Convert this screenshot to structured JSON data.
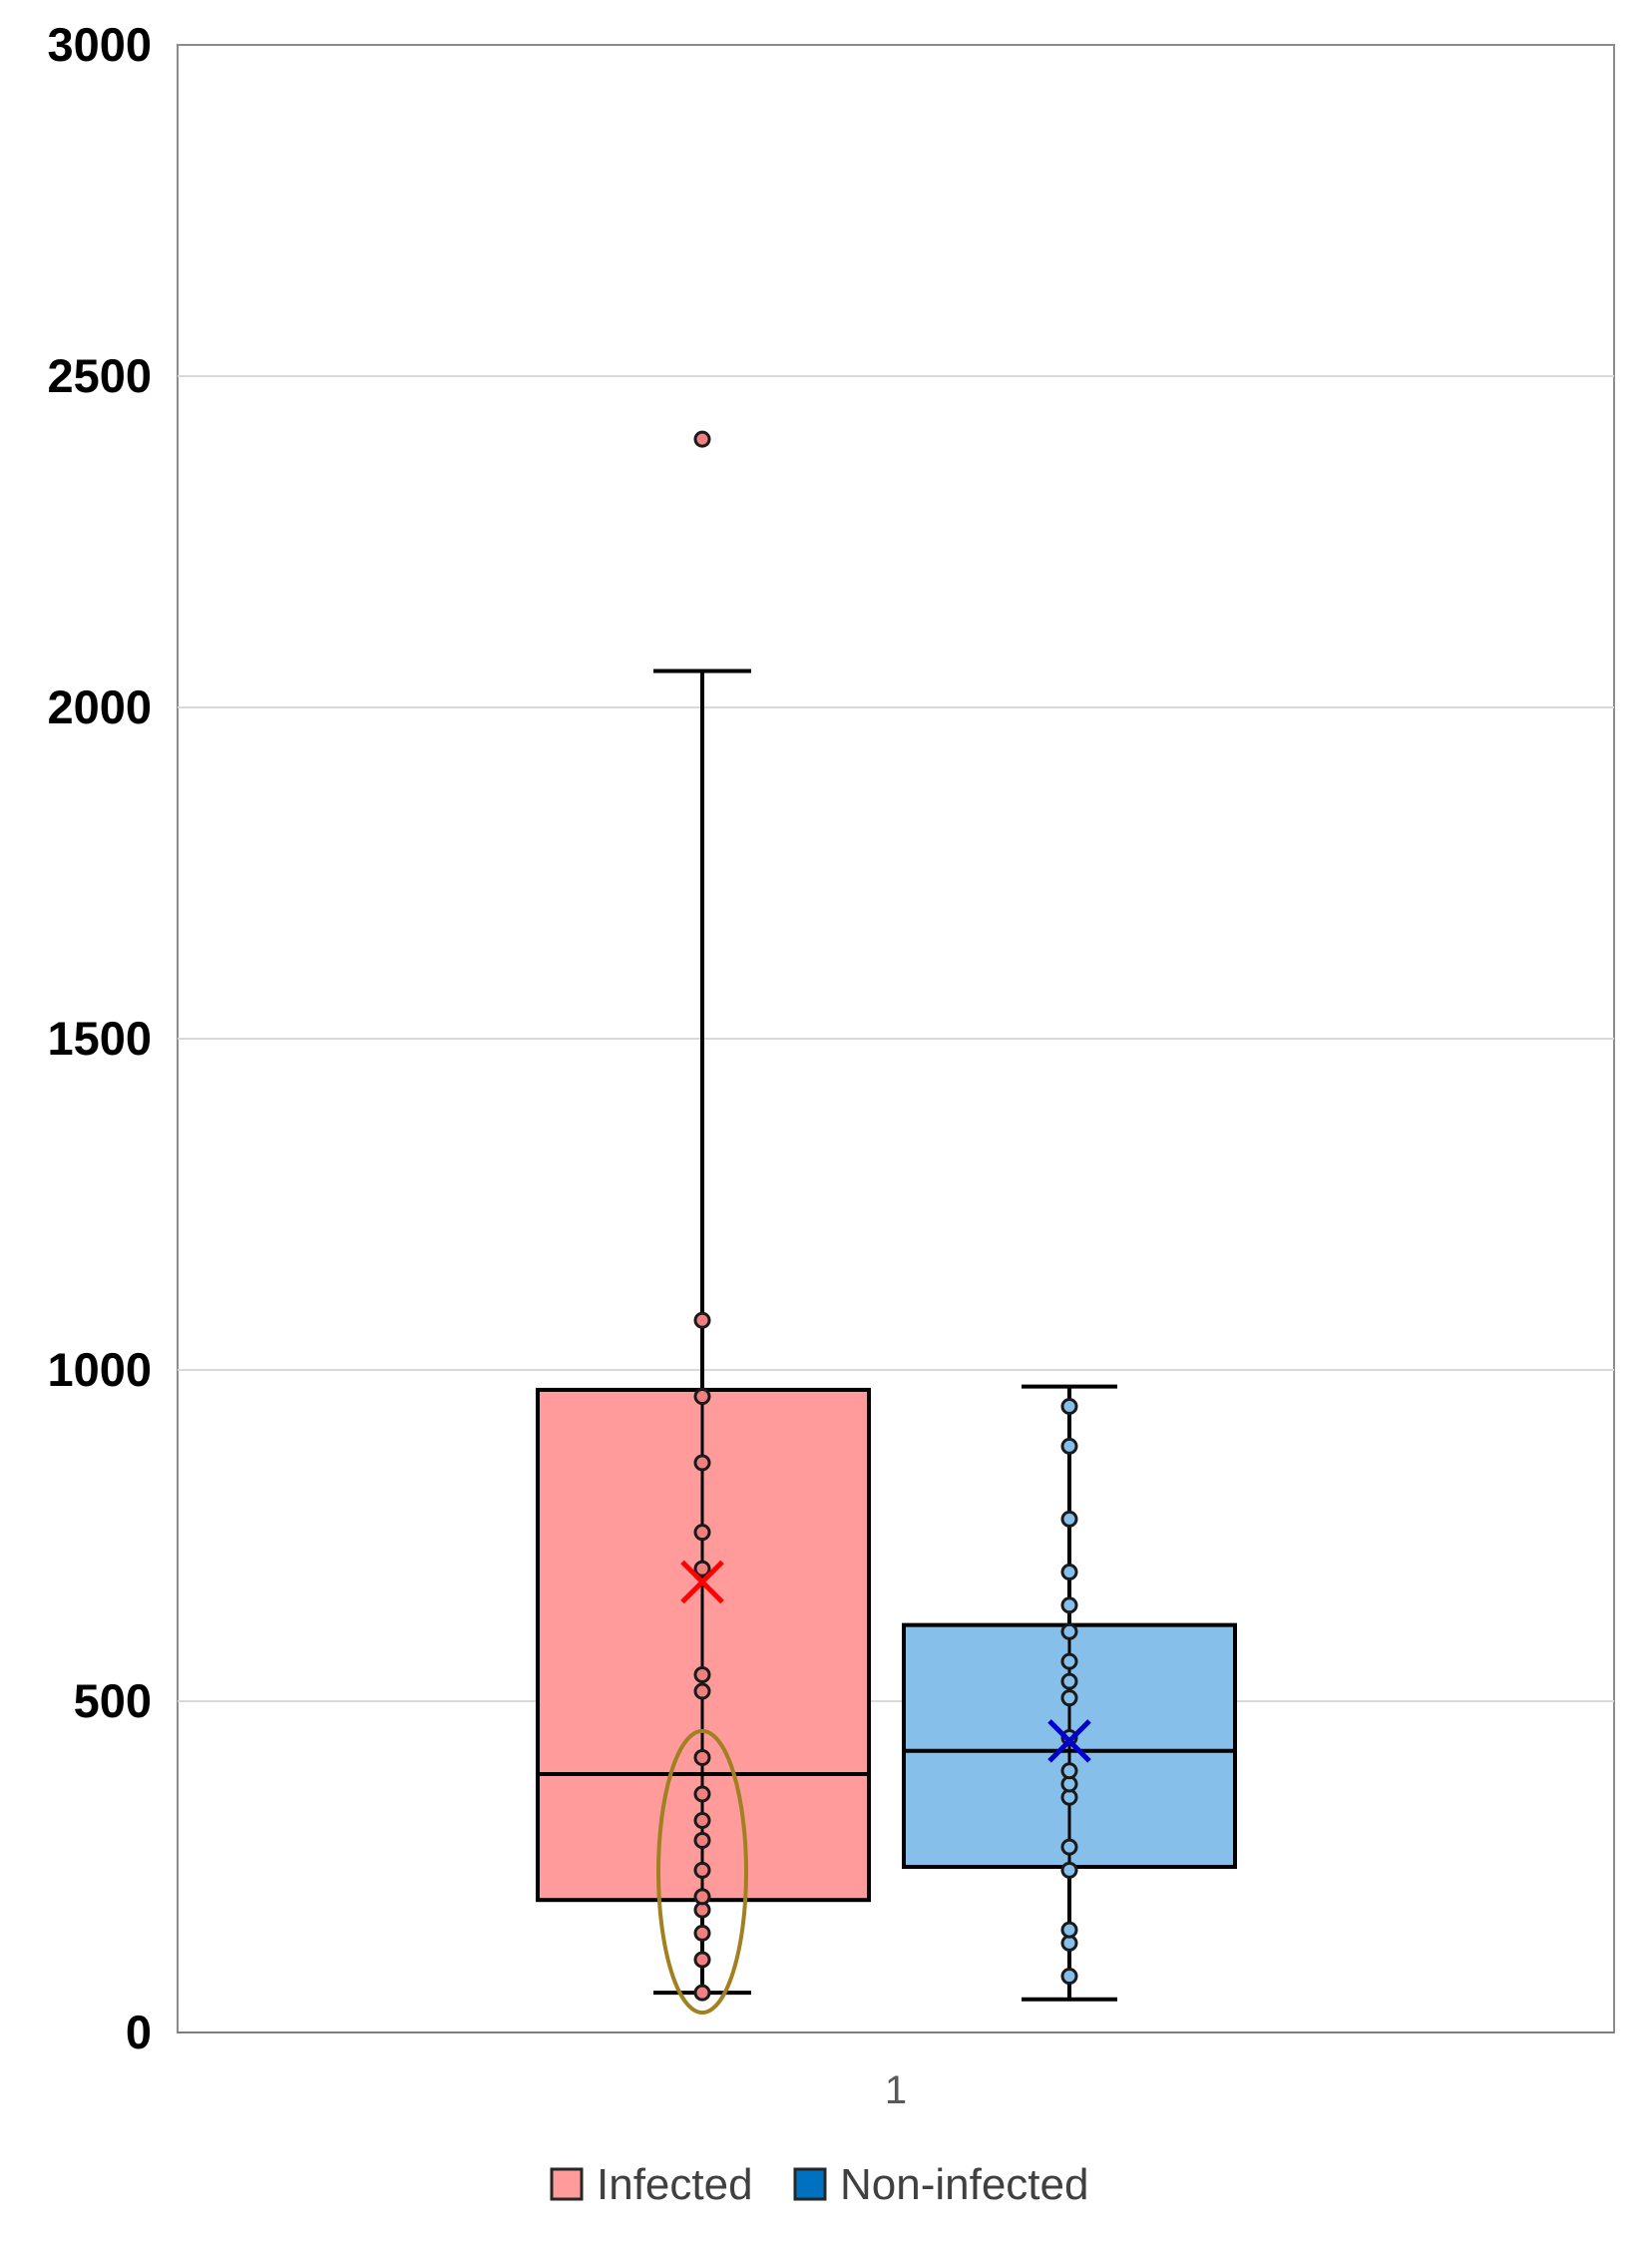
{
  "chart_data": {
    "type": "box",
    "title": "",
    "xlabel": "",
    "ylabel": "",
    "ylim": [
      0,
      3000
    ],
    "yticks": [
      "0",
      "500",
      "1000",
      "1500",
      "2000",
      "2500",
      "3000"
    ],
    "categories": [
      "1"
    ],
    "grid": true,
    "legend_position": "bottom",
    "series": [
      {
        "name": "Infected",
        "color": "#ff9b9b",
        "mean_marker_color": "#ff0000",
        "point_color": "#f08080",
        "whisker_low": 60,
        "q1": 200,
        "median": 390,
        "q3": 970,
        "whisker_high": 2055,
        "mean": 680,
        "outliers": [
          2405
        ],
        "points": [
          60,
          110,
          150,
          185,
          205,
          245,
          290,
          320,
          360,
          415,
          515,
          540,
          700,
          755,
          860,
          960,
          1075,
          2405
        ]
      },
      {
        "name": "Non-infected",
        "color": "#85bfea",
        "mean_marker_color": "#0000cc",
        "point_color": "#85bfea",
        "whisker_low": 50,
        "q1": 250,
        "median": 425,
        "q3": 615,
        "whisker_high": 975,
        "mean": 440,
        "outliers": [],
        "points": [
          85,
          135,
          155,
          245,
          280,
          355,
          375,
          395,
          445,
          505,
          530,
          560,
          605,
          645,
          695,
          775,
          885,
          945
        ]
      }
    ],
    "annotations": [
      {
        "type": "ellipse",
        "series": "Infected",
        "color": "#a08020",
        "y_range": [
          30,
          455
        ]
      }
    ]
  },
  "legend": {
    "items": [
      {
        "label": "Infected",
        "color": "#ff9b9b"
      },
      {
        "label": "Non-infected",
        "color": "#0070c0"
      }
    ]
  }
}
